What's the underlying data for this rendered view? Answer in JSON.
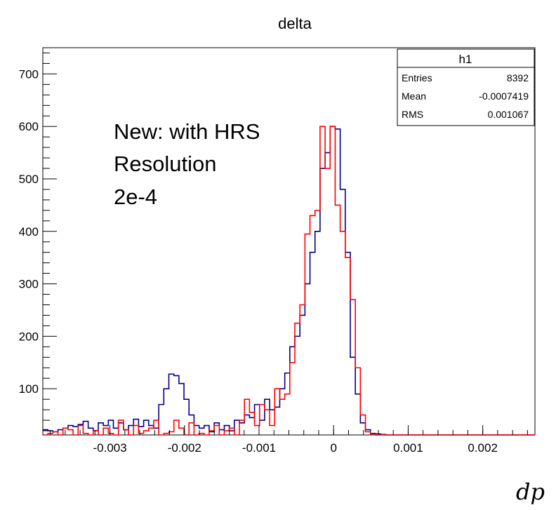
{
  "chart_data": {
    "type": "histogram",
    "title": "delta",
    "xlabel": "dp",
    "ylabel": "",
    "xlim": [
      -0.0039,
      0.0027
    ],
    "ylim": [
      12,
      750
    ],
    "xticks": [
      {
        "value": -0.003,
        "label": "-0.003"
      },
      {
        "value": -0.002,
        "label": "-0.002"
      },
      {
        "value": -0.001,
        "label": "-0.001"
      },
      {
        "value": 0,
        "label": "0"
      },
      {
        "value": 0.001,
        "label": "0.001"
      },
      {
        "value": 0.002,
        "label": "0.002"
      }
    ],
    "yticks": [
      {
        "value": 100,
        "label": "100"
      },
      {
        "value": 200,
        "label": "200"
      },
      {
        "value": 300,
        "label": "300"
      },
      {
        "value": 400,
        "label": "400"
      },
      {
        "value": 500,
        "label": "500"
      },
      {
        "value": 600,
        "label": "600"
      },
      {
        "value": 700,
        "label": "700"
      }
    ],
    "grid": false,
    "annotation_lines": [
      "New: with HRS",
      "Resolution",
      "2e-4"
    ],
    "stats_box": {
      "title": "h1",
      "rows": [
        {
          "label": "Entries",
          "value": "8392"
        },
        {
          "label": "Mean",
          "value": "-0.0007419"
        },
        {
          "label": "RMS",
          "value": "0.001067"
        }
      ]
    },
    "series": [
      {
        "color": "#00008b",
        "bin_start": -0.0039,
        "bin_width": 6.76e-05,
        "values": [
          22,
          20,
          18,
          22,
          25,
          30,
          28,
          32,
          38,
          25,
          20,
          35,
          30,
          40,
          25,
          35,
          22,
          30,
          42,
          28,
          40,
          30,
          25,
          70,
          100,
          128,
          125,
          110,
          80,
          50,
          30,
          25,
          30,
          18,
          35,
          22,
          30,
          20,
          40,
          35,
          50,
          45,
          70,
          40,
          80,
          60,
          65,
          100,
          130,
          180,
          200,
          240,
          300,
          360,
          400,
          520,
          550,
          600,
          595,
          480,
          360,
          160,
          90,
          35,
          22,
          15,
          14,
          13,
          12,
          12,
          12,
          12,
          12,
          12,
          12,
          12,
          12,
          12,
          12,
          12,
          12,
          12,
          12,
          12,
          12,
          12,
          12,
          12,
          12,
          12,
          12,
          12,
          12,
          12,
          12,
          12,
          12,
          12
        ]
      },
      {
        "color": "#ff0000",
        "bin_start": -0.0039,
        "bin_width": 6.76e-05,
        "values": [
          12,
          15,
          18,
          12,
          25,
          22,
          12,
          30,
          15,
          12,
          20,
          12,
          25,
          15,
          12,
          40,
          22,
          12,
          30,
          15,
          20,
          25,
          40,
          12,
          15,
          18,
          40,
          25,
          12,
          35,
          12,
          15,
          12,
          20,
          30,
          12,
          20,
          25,
          12,
          40,
          80,
          55,
          30,
          70,
          60,
          30,
          100,
          80,
          90,
          150,
          225,
          260,
          395,
          430,
          440,
          600,
          520,
          600,
          450,
          400,
          350,
          270,
          140,
          50,
          18,
          14,
          12,
          12,
          12,
          12,
          12,
          12,
          12,
          12,
          12,
          12,
          12,
          12,
          12,
          12,
          12,
          12,
          12,
          12,
          12,
          12,
          12,
          12,
          12,
          12,
          12,
          12,
          12,
          12,
          12,
          12,
          12,
          12
        ]
      }
    ]
  }
}
